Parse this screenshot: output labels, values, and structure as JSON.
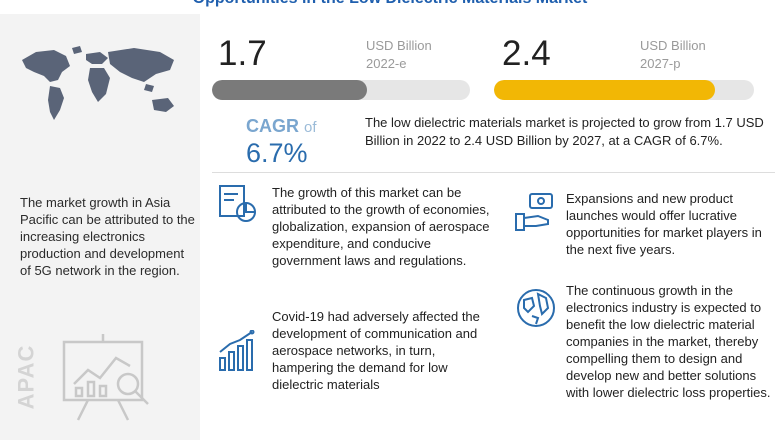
{
  "title": "Opportunities in the Low Dielectric Materials Market",
  "left_panel": {
    "description": "The market growth in Asia Pacific can be attributed to the increasing electronics production and development of 5G network in the region.",
    "region_label": "APAC"
  },
  "stats": [
    {
      "value": "1.7",
      "unit": "USD Billion",
      "year": "2022-e",
      "fill_fraction": 0.6,
      "color": "#7a7a7a"
    },
    {
      "value": "2.4",
      "unit": "USD Billion",
      "year": "2027-p",
      "fill_fraction": 0.85,
      "color": "#f2b705"
    }
  ],
  "cagr": {
    "label": "CAGR",
    "of": "of",
    "value": "6.7%"
  },
  "summary": "The low dielectric materials market is projected to grow from 1.7 USD Billion in 2022 to 2.4 USD Billion by 2027, at a CAGR of 6.7%.",
  "points": [
    {
      "text": "The growth of this market can be attributed to the growth of economies, globalization, expansion of aerospace expenditure, and conducive government laws and regulations.",
      "icon": "analytics-icon"
    },
    {
      "text": "Covid-19 had adversely affected the development of communication and aerospace networks, in turn, hampering the demand for low dielectric materials",
      "icon": "growth-chart-icon"
    },
    {
      "text": "Expansions and new product launches would offer lucrative opportunities for market players in the next five years.",
      "icon": "money-hand-icon"
    },
    {
      "text": "The continuous growth in the electronics industry is expected to benefit  the low dielectric material companies in the market, thereby compelling them to design and develop new and better solutions with lower dielectric loss properties.",
      "icon": "globe-icon"
    }
  ],
  "colors": {
    "accent_blue": "#2a6cad",
    "accent_yellow": "#f2b705",
    "panel_gray": "#f3f3f3"
  }
}
